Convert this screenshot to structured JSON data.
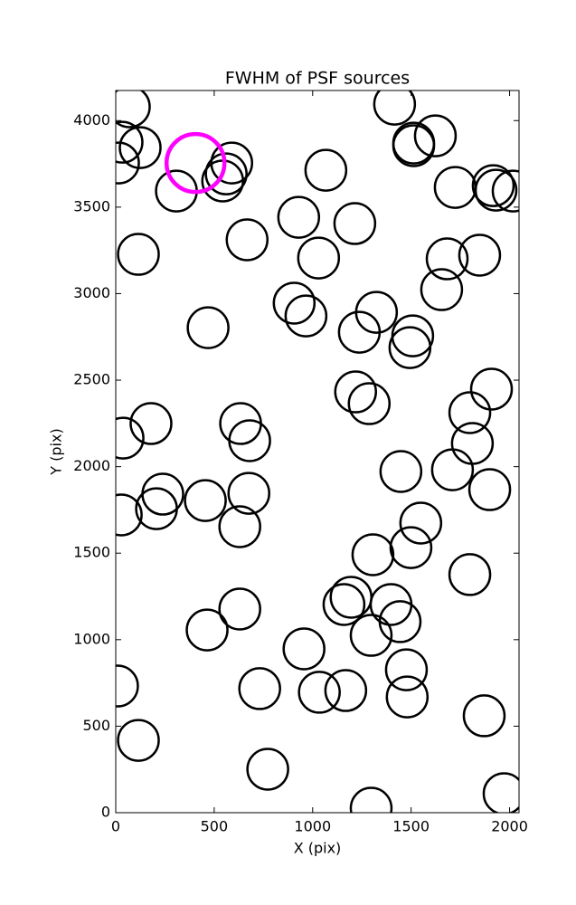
{
  "chart_data": {
    "type": "scatter",
    "title": "FWHM of PSF sources",
    "x_label": "X (pix)",
    "y_label": "Y (pix)",
    "xlim": [
      0,
      2048
    ],
    "ylim": [
      0,
      4174
    ],
    "xticks": [
      0,
      500,
      1000,
      1500,
      2000
    ],
    "yticks": [
      0,
      500,
      1000,
      1500,
      2000,
      2500,
      3000,
      3500,
      4000
    ],
    "series": [
      {
        "color": "#000000",
        "x": [
          69,
          32,
          124,
          14,
          589,
          543,
          561,
          308,
          1067,
          1416,
          1513,
          1513,
          1623,
          1724,
          1917,
          1931,
          2018,
          929,
          1214,
          667,
          1030,
          115,
          1683,
          1848,
          1655,
          906,
          966,
          469,
          1324,
          1237,
          1508,
          1494,
          1218,
          1287,
          1908,
          1798,
          1811,
          1710,
          1899,
          1448,
          634,
          680,
          179,
          37,
          239,
          207,
          455,
          676,
          630,
          28,
          1549,
          1499,
          1306,
          1798,
          1195,
          1159,
          1398,
          1444,
          1297,
          630,
          464,
          956,
          1476,
          1480,
          1034,
          1168,
          731,
          9,
          1871,
          115,
          772,
          1297,
          1972
        ],
        "y": [
          4080,
          3875,
          3844,
          3755,
          3755,
          3651,
          3692,
          3593,
          3713,
          4095,
          3870,
          3855,
          3912,
          3614,
          3624,
          3598,
          3593,
          3441,
          3405,
          3311,
          3206,
          3227,
          3201,
          3222,
          3023,
          2945,
          2871,
          2803,
          2892,
          2777,
          2756,
          2688,
          2432,
          2364,
          2448,
          2312,
          2134,
          1982,
          1867,
          1972,
          2249,
          2150,
          2249,
          2165,
          1841,
          1757,
          1804,
          1846,
          1653,
          1721,
          1674,
          1532,
          1491,
          1376,
          1245,
          1203,
          1203,
          1104,
          1025,
          1177,
          1056,
          947,
          826,
          669,
          696,
          706,
          717,
          732,
          560,
          418,
          251,
          26,
          110
        ]
      },
      {
        "color": "#ff00ff",
        "x": [
          405
        ],
        "y": [
          3755
        ]
      }
    ]
  }
}
